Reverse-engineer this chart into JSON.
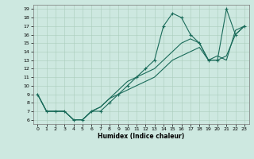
{
  "xlabel": "Humidex (Indice chaleur)",
  "bg_color": "#cde8e0",
  "grid_color": "#aaccbb",
  "line_color": "#1a6b5a",
  "xlim": [
    -0.5,
    23.5
  ],
  "ylim": [
    5.5,
    19.5
  ],
  "xticks": [
    0,
    1,
    2,
    3,
    4,
    5,
    6,
    7,
    8,
    9,
    10,
    11,
    12,
    13,
    14,
    15,
    16,
    17,
    18,
    19,
    20,
    21,
    22,
    23
  ],
  "yticks": [
    6,
    7,
    8,
    9,
    10,
    11,
    12,
    13,
    14,
    15,
    16,
    17,
    18,
    19
  ],
  "line1_y": [
    9,
    7,
    7,
    7,
    6,
    6,
    7,
    7,
    8,
    9,
    10,
    11,
    12,
    13,
    17,
    18.5,
    18,
    16,
    15,
    13,
    13,
    19,
    16,
    17
  ],
  "line2_y": [
    9,
    7,
    7,
    7,
    6,
    6,
    7,
    7.5,
    8.5,
    9.5,
    10.5,
    11,
    11.5,
    12,
    13,
    14,
    15,
    15.5,
    15,
    13,
    13.5,
    13,
    16.5,
    17
  ],
  "line3_y": [
    9,
    7,
    7,
    7,
    6,
    6,
    7,
    7.5,
    8.5,
    9,
    9.5,
    10,
    10.5,
    11,
    12,
    13,
    13.5,
    14,
    14.5,
    13,
    13,
    13.5,
    16,
    17
  ]
}
